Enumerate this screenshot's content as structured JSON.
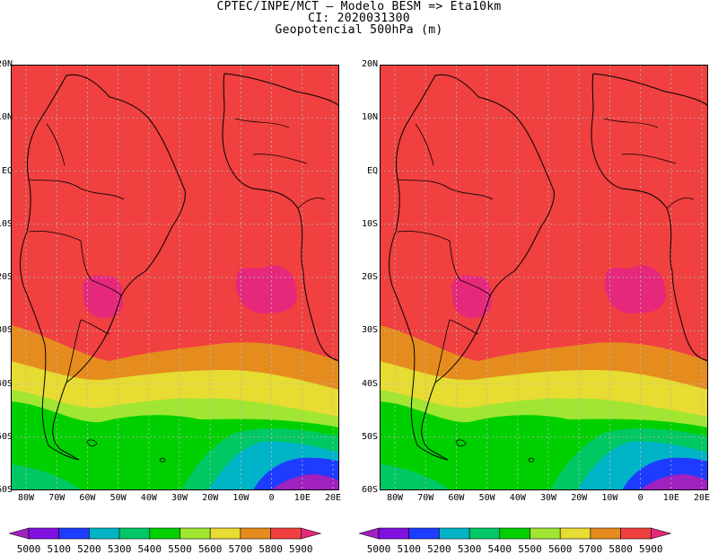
{
  "header": {
    "line1": "CPTEC/INPE/MCT –  Modelo BESM => Eta10km",
    "line2": "CI: 2020031300",
    "line3": "Geopotencial 500hPa (m)"
  },
  "map": {
    "lat_labels": [
      "20N",
      "10N",
      "EQ",
      "10S",
      "20S",
      "30S",
      "40S",
      "50S",
      "60S"
    ],
    "lon_labels": [
      "80W",
      "70W",
      "60W",
      "50W",
      "40W",
      "30W",
      "20W",
      "10W",
      "0",
      "10E",
      "20E"
    ],
    "lon_range_deg": [
      -85,
      20
    ],
    "lat_range_deg": [
      -60,
      20
    ]
  },
  "colorbar": {
    "levels": [
      "5000",
      "5100",
      "5200",
      "5300",
      "5400",
      "5500",
      "5600",
      "5700",
      "5800",
      "5900"
    ],
    "colors": [
      "#a020c0",
      "#8010e0",
      "#1e3cff",
      "#00b4c8",
      "#00c864",
      "#00d000",
      "#a0e632",
      "#e6dc32",
      "#e68c1e",
      "#f04040",
      "#e6287a"
    ]
  },
  "panels": [
    "left",
    "right"
  ]
}
